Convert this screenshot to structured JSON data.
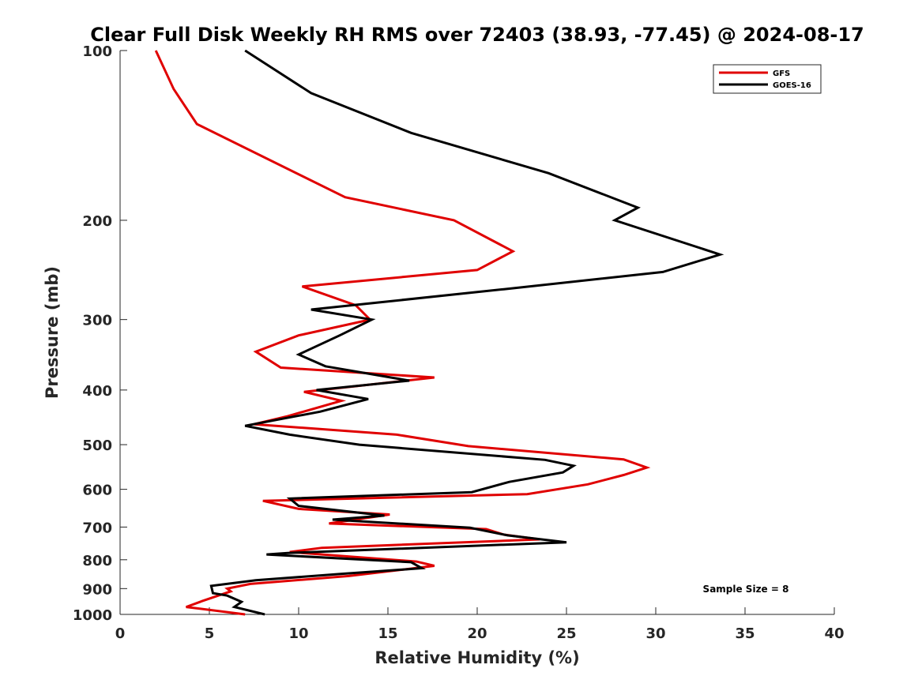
{
  "chart_data": {
    "type": "line",
    "title": "Clear Full Disk Weekly RH RMS over 72403 (38.93, -77.45) @ 2024-08-17",
    "xlabel": "Relative Humidity (%)",
    "ylabel": "Pressure (mb)",
    "xlim": [
      0,
      40
    ],
    "ylim": [
      100,
      1000
    ],
    "y_scale": "log",
    "y_reversed": true,
    "xticks": [
      "0",
      "5",
      "10",
      "15",
      "20",
      "25",
      "30",
      "35",
      "40"
    ],
    "yticks": [
      "100",
      "200",
      "300",
      "400",
      "500",
      "600",
      "700",
      "800",
      "900",
      "1000"
    ],
    "grid": false,
    "legend_position": "top-right",
    "annotation": "Sample Size = 8",
    "series": [
      {
        "name": "GFS",
        "color": "#e00000",
        "points": [
          [
            2.0,
            100
          ],
          [
            3.0,
            117
          ],
          [
            4.3,
            135
          ],
          [
            12.6,
            182
          ],
          [
            18.7,
            200
          ],
          [
            22.0,
            227
          ],
          [
            20.0,
            245
          ],
          [
            10.2,
            262
          ],
          [
            13.2,
            283
          ],
          [
            14.0,
            300
          ],
          [
            10.0,
            320
          ],
          [
            7.6,
            342
          ],
          [
            9.0,
            365
          ],
          [
            17.6,
            380
          ],
          [
            10.3,
            403
          ],
          [
            12.4,
            418
          ],
          [
            9.4,
            445
          ],
          [
            7.5,
            460
          ],
          [
            15.5,
            480
          ],
          [
            19.5,
            503
          ],
          [
            28.2,
            531
          ],
          [
            29.5,
            549
          ],
          [
            28.2,
            566
          ],
          [
            26.2,
            588
          ],
          [
            22.8,
            612
          ],
          [
            8.0,
            629
          ],
          [
            10.0,
            650
          ],
          [
            15.1,
            665
          ],
          [
            11.7,
            690
          ],
          [
            20.5,
            706
          ],
          [
            21.5,
            722
          ],
          [
            23.5,
            736
          ],
          [
            11.3,
            762
          ],
          [
            9.5,
            775
          ],
          [
            16.6,
            806
          ],
          [
            17.6,
            820
          ],
          [
            12.8,
            855
          ],
          [
            7.3,
            883
          ],
          [
            6.0,
            900
          ],
          [
            6.2,
            910
          ],
          [
            4.6,
            947
          ],
          [
            3.7,
            970
          ],
          [
            7.0,
            1000
          ]
        ]
      },
      {
        "name": "GOES-16",
        "color": "#000000",
        "points": [
          [
            7.0,
            100
          ],
          [
            10.7,
            119
          ],
          [
            16.3,
            140
          ],
          [
            24.0,
            165
          ],
          [
            29.0,
            190
          ],
          [
            27.7,
            200
          ],
          [
            33.6,
            230
          ],
          [
            30.4,
            247
          ],
          [
            21.5,
            265
          ],
          [
            10.7,
            288
          ],
          [
            14.1,
            300
          ],
          [
            12.3,
            320
          ],
          [
            10.0,
            346
          ],
          [
            11.5,
            363
          ],
          [
            16.2,
            385
          ],
          [
            11.0,
            400
          ],
          [
            13.9,
            415
          ],
          [
            11.2,
            437
          ],
          [
            7.0,
            463
          ],
          [
            9.5,
            480
          ],
          [
            13.4,
            500
          ],
          [
            23.8,
            532
          ],
          [
            25.4,
            545
          ],
          [
            24.8,
            560
          ],
          [
            21.8,
            582
          ],
          [
            19.7,
            607
          ],
          [
            9.5,
            623
          ],
          [
            10.0,
            642
          ],
          [
            14.8,
            668
          ],
          [
            11.9,
            679
          ],
          [
            19.6,
            702
          ],
          [
            21.7,
            724
          ],
          [
            25.0,
            745
          ],
          [
            9.4,
            778
          ],
          [
            8.2,
            783
          ],
          [
            16.3,
            808
          ],
          [
            16.9,
            828
          ],
          [
            12.5,
            847
          ],
          [
            7.6,
            870
          ],
          [
            5.1,
            890
          ],
          [
            5.2,
            917
          ],
          [
            6.0,
            926
          ],
          [
            6.8,
            950
          ],
          [
            6.4,
            970
          ],
          [
            8.1,
            1000
          ]
        ]
      }
    ]
  }
}
